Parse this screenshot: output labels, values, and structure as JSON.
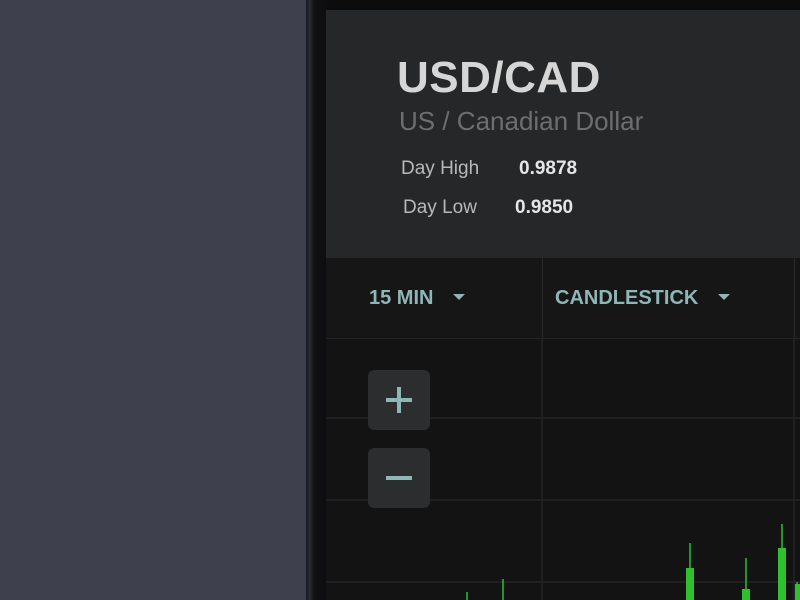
{
  "instrument": {
    "pair": "USD/CAD",
    "name": "US / Canadian Dollar",
    "day_high_label": "Day High",
    "day_high_value": "0.9878",
    "day_low_label": "Day Low",
    "day_low_value": "0.9850"
  },
  "toolbar": {
    "interval_label": "15 MIN",
    "chart_type_label": "CANDLESTICK"
  },
  "colors": {
    "accent": "#8fb6b6",
    "candle_up": "#2fbf2f",
    "background": "#131314",
    "header": "#262728"
  },
  "icons": {
    "zoom_in": "plus-icon",
    "zoom_out": "minus-icon",
    "dropdown": "caret-down-icon"
  }
}
